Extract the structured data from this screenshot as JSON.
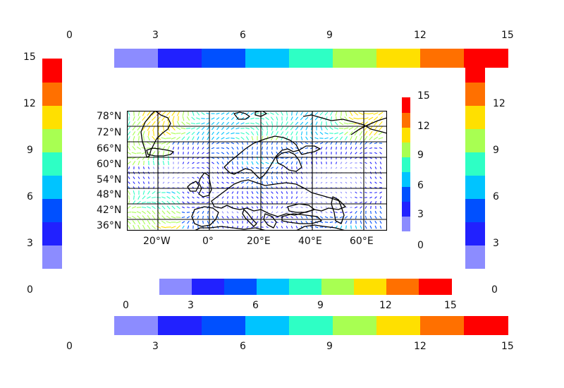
{
  "palette": [
    "#8c8cff",
    "#2121ff",
    "#0050ff",
    "#00c4ff",
    "#2effc5",
    "#a8ff52",
    "#ffe000",
    "#ff7000",
    "#ff0000"
  ],
  "map": {
    "lat_labels": [
      "78°N",
      "72°N",
      "66°N",
      "60°N",
      "54°N",
      "48°N",
      "42°N",
      "36°N"
    ],
    "lon_labels": [
      "20°W",
      "0°",
      "20°E",
      "40°E",
      "60°E"
    ],
    "vector_field": "wind-vectors-colored-by-magnitude"
  },
  "colorbars": {
    "top": {
      "ticks": [
        "0",
        "3",
        "6",
        "9",
        "12",
        "15"
      ]
    },
    "bottom": {
      "ticks": [
        "0",
        "3",
        "6",
        "9",
        "12",
        "15"
      ]
    },
    "middle": {
      "ticks": [
        "0",
        "3",
        "6",
        "9",
        "12",
        "15"
      ]
    },
    "left": {
      "ticks": [
        "15",
        "12",
        "9",
        "6",
        "3",
        "0"
      ]
    },
    "right": {
      "ticks": [
        "15",
        "12",
        "9",
        "6",
        "3",
        "0"
      ]
    },
    "inner": {
      "ticks": [
        "15",
        "12",
        "9",
        "6",
        "3",
        "0"
      ]
    }
  }
}
